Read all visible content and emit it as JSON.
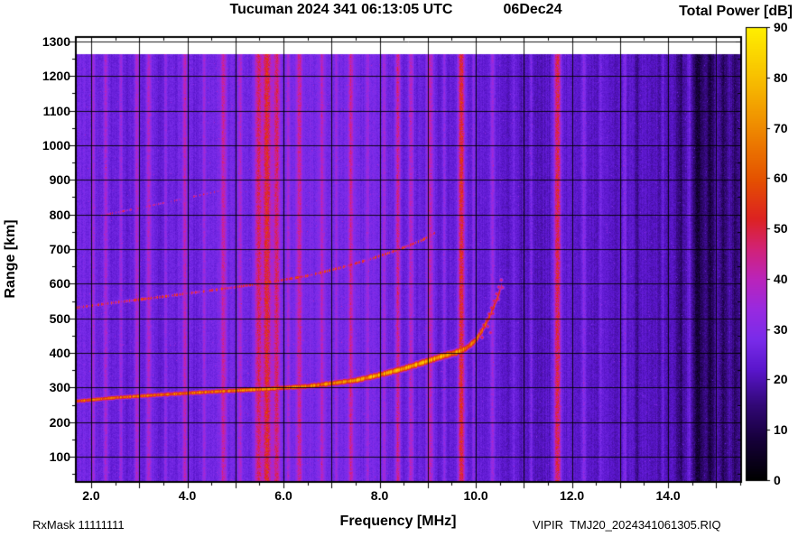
{
  "header": {
    "title": "Tucuman 2024 341 06:13:05 UTC",
    "date": "06Dec24"
  },
  "colorbar": {
    "title": "Total Power [dB]",
    "min": 0,
    "max": 90,
    "ticks": [
      0,
      10,
      20,
      30,
      40,
      50,
      60,
      70,
      80,
      90
    ]
  },
  "axes": {
    "x_label": "Frequency [MHz]",
    "y_label": "Range [km]",
    "x_ticks": [
      {
        "value": 2,
        "label": "2.0"
      },
      {
        "value": 4,
        "label": "4.0"
      },
      {
        "value": 6,
        "label": "6.0"
      },
      {
        "value": 8,
        "label": "8.0"
      },
      {
        "value": 10,
        "label": "10.0"
      },
      {
        "value": 12,
        "label": "12.0"
      },
      {
        "value": 14,
        "label": "14.0"
      }
    ],
    "y_ticks": [
      100,
      200,
      300,
      400,
      500,
      600,
      700,
      800,
      900,
      1000,
      1100,
      1200,
      1300
    ]
  },
  "footer": {
    "rxmask": "RxMask 11111111",
    "file": "VIPIR  TMJ20_2024341061305.RIQ"
  },
  "chart_data": {
    "type": "heatmap",
    "title": "Tucuman 2024 341 06:13:05 UTC 06Dec24 ionogram",
    "xlabel": "Frequency [MHz]",
    "ylabel": "Range [km]",
    "zlabel": "Total Power [dB]",
    "x_range": [
      1.7,
      15.5
    ],
    "y_range": [
      30,
      1310
    ],
    "z_range": [
      0,
      90
    ],
    "grid": true,
    "data_top_km": 1262,
    "base_power": 26,
    "noise_seed": 1234567,
    "colormap": [
      [
        0,
        "#000000"
      ],
      [
        8,
        "#16003a"
      ],
      [
        15,
        "#320877"
      ],
      [
        22,
        "#5a16cc"
      ],
      [
        28,
        "#7a2cea"
      ],
      [
        34,
        "#992ae0"
      ],
      [
        40,
        "#bb24bb"
      ],
      [
        46,
        "#d22277"
      ],
      [
        52,
        "#dd2222"
      ],
      [
        60,
        "#e55300"
      ],
      [
        70,
        "#ef8a00"
      ],
      [
        80,
        "#f8c000"
      ],
      [
        90,
        "#fff000"
      ]
    ],
    "rfi_bands": [
      [
        2.05,
        0.025,
        9
      ],
      [
        2.3,
        0.035,
        13
      ],
      [
        2.62,
        0.025,
        9
      ],
      [
        2.95,
        0.03,
        12
      ],
      [
        3.2,
        0.035,
        13
      ],
      [
        3.55,
        0.025,
        8
      ],
      [
        3.95,
        0.035,
        13
      ],
      [
        4.35,
        0.025,
        9
      ],
      [
        4.75,
        0.04,
        15
      ],
      [
        5.1,
        0.03,
        11
      ],
      [
        5.48,
        0.055,
        20
      ],
      [
        5.66,
        0.06,
        24
      ],
      [
        5.86,
        0.05,
        19
      ],
      [
        6.1,
        0.025,
        9
      ],
      [
        6.33,
        0.04,
        16
      ],
      [
        6.8,
        0.035,
        12
      ],
      [
        7.1,
        0.025,
        8
      ],
      [
        7.4,
        0.04,
        15
      ],
      [
        7.75,
        0.025,
        8
      ],
      [
        8.1,
        0.025,
        9
      ],
      [
        8.38,
        0.04,
        19
      ],
      [
        8.65,
        0.04,
        15
      ],
      [
        9.05,
        0.05,
        17
      ],
      [
        9.35,
        0.025,
        9
      ],
      [
        9.7,
        0.05,
        27
      ],
      [
        9.95,
        0.02,
        7
      ],
      [
        10.35,
        0.035,
        10
      ],
      [
        10.8,
        0.02,
        6
      ],
      [
        11.15,
        0.025,
        7
      ],
      [
        11.7,
        0.05,
        26
      ],
      [
        12.25,
        0.03,
        9
      ],
      [
        12.6,
        0.02,
        5
      ],
      [
        13.1,
        0.025,
        7
      ],
      [
        13.9,
        0.02,
        5
      ],
      [
        14.45,
        0.025,
        6
      ],
      [
        13.35,
        0.04,
        -5
      ],
      [
        14.25,
        0.05,
        -8
      ],
      [
        14.62,
        0.08,
        -12
      ],
      [
        14.88,
        0.06,
        -10
      ],
      [
        15.15,
        0.06,
        -9
      ],
      [
        15.4,
        0.05,
        -8
      ]
    ],
    "region_offsets": [
      {
        "f0": 10.55,
        "f1": 11.45,
        "dp": -1.5
      },
      {
        "f0": 10.9,
        "f1": 15.5,
        "dp": -2.5
      },
      {
        "f0": 13.8,
        "f1": 15.5,
        "dp": -1.5
      }
    ],
    "traces": [
      {
        "name": "F-region echo, 1st hop",
        "points": [
          [
            1.7,
            262
          ],
          [
            2.5,
            272
          ],
          [
            3.5,
            281
          ],
          [
            4.5,
            289
          ],
          [
            5.5,
            296
          ],
          [
            6.5,
            305
          ],
          [
            7.5,
            322
          ],
          [
            8,
            338
          ],
          [
            8.5,
            356
          ],
          [
            9,
            378
          ],
          [
            9.3,
            392
          ],
          [
            9.6,
            403
          ],
          [
            9.8,
            415
          ],
          [
            10,
            438
          ],
          [
            10.15,
            470
          ],
          [
            10.3,
            510
          ],
          [
            10.45,
            560
          ],
          [
            10.55,
            600
          ]
        ],
        "amp_points": [
          [
            1.7,
            64
          ],
          [
            3,
            65
          ],
          [
            5,
            67
          ],
          [
            7,
            70
          ],
          [
            8,
            74
          ],
          [
            8.7,
            77
          ],
          [
            9.3,
            75
          ],
          [
            9.7,
            70
          ],
          [
            10,
            62
          ],
          [
            10.3,
            56
          ],
          [
            10.55,
            50
          ]
        ],
        "th_points": [
          [
            1.7,
            9
          ],
          [
            5,
            10
          ],
          [
            7,
            12
          ],
          [
            8.5,
            14
          ],
          [
            9.3,
            15
          ],
          [
            9.8,
            16
          ],
          [
            10.55,
            18
          ]
        ],
        "gap_prob": 0
      },
      {
        "name": "F-region echo, 2nd hop",
        "points": [
          [
            1.7,
            532
          ],
          [
            2.5,
            547
          ],
          [
            3.5,
            564
          ],
          [
            4.5,
            582
          ],
          [
            5.5,
            601
          ],
          [
            6.5,
            624
          ],
          [
            7.2,
            648
          ],
          [
            7.8,
            672
          ],
          [
            8.4,
            700
          ],
          [
            8.9,
            728
          ],
          [
            9.15,
            748
          ]
        ],
        "amp": 54,
        "th": 8,
        "gap_prob": 0.12
      },
      {
        "name": "F-region echo, 3rd hop (faint)",
        "points": [
          [
            2.2,
            798
          ],
          [
            3,
            820
          ],
          [
            3.9,
            846
          ],
          [
            4.7,
            870
          ]
        ],
        "amp": 46,
        "th": 6,
        "gap_prob": 0.45
      }
    ],
    "dots": [
      [
        9.9,
        425,
        60
      ],
      [
        9.98,
        438,
        58
      ],
      [
        10.05,
        452,
        57
      ],
      [
        10.1,
        466,
        56
      ],
      [
        10.16,
        482,
        55
      ],
      [
        10.22,
        498,
        54
      ],
      [
        10.27,
        514,
        53
      ],
      [
        10.32,
        532,
        52
      ],
      [
        10.37,
        552,
        51
      ],
      [
        10.42,
        572,
        50
      ],
      [
        10.47,
        592,
        49
      ],
      [
        10.52,
        612,
        48
      ],
      [
        10.12,
        446,
        52
      ],
      [
        10.24,
        478,
        51
      ],
      [
        10.35,
        515,
        50
      ],
      [
        10.46,
        556,
        48
      ],
      [
        10.55,
        590,
        46
      ],
      [
        10.3,
        460,
        49
      ]
    ]
  }
}
